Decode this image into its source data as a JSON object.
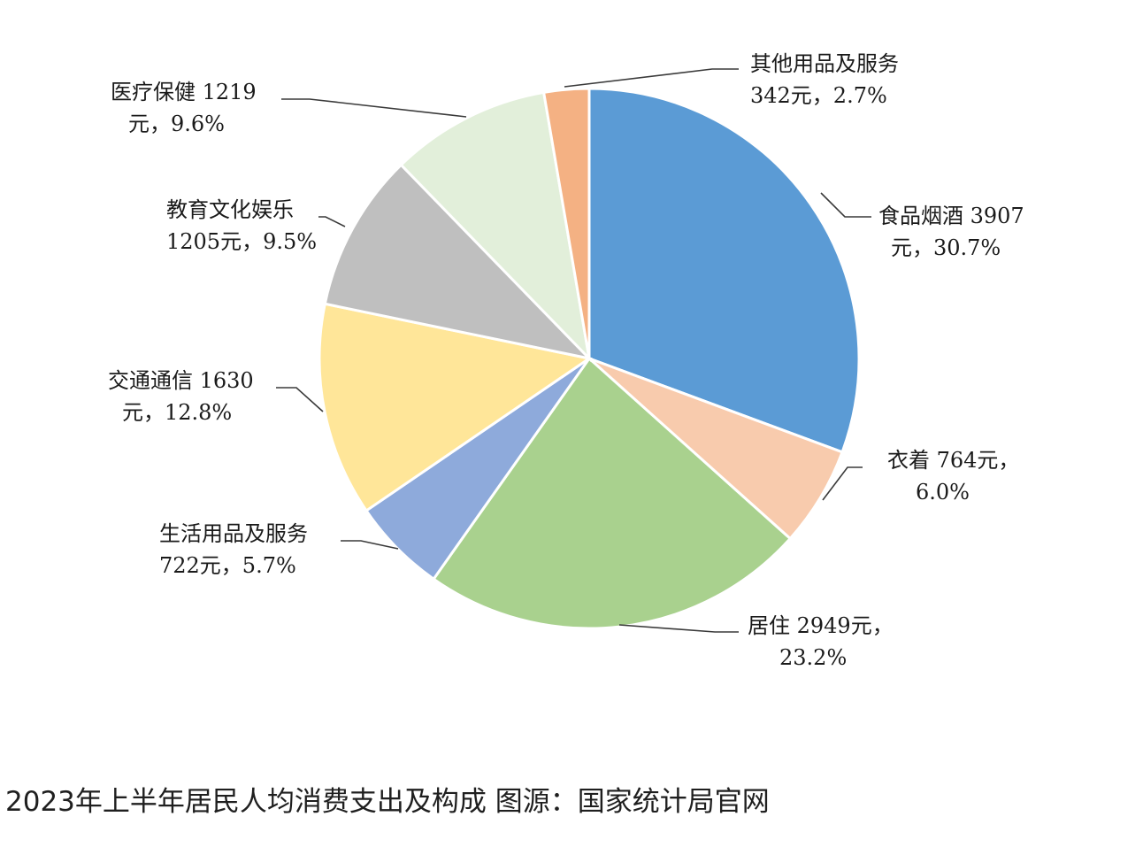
{
  "caption": "2023年上半年居民人均消费支出及构成 图源：国家统计局官网",
  "chart_data": {
    "type": "pie",
    "title": "",
    "start_angle_deg": 0,
    "direction": "clockwise",
    "slices": [
      {
        "name": "食品烟酒",
        "amount": 3907,
        "percent": 30.7,
        "color": "#5b9bd5",
        "label_lines": [
          "食品烟酒 3907",
          "元，30.7%"
        ]
      },
      {
        "name": "衣着",
        "amount": 764,
        "percent": 6.0,
        "color": "#f8cbad",
        "label_lines": [
          "衣着 764元，",
          "6.0%"
        ]
      },
      {
        "name": "居住",
        "amount": 2949,
        "percent": 23.2,
        "color": "#a9d18e",
        "label_lines": [
          "居住 2949元，",
          "23.2%"
        ]
      },
      {
        "name": "生活用品及服务",
        "amount": 722,
        "percent": 5.7,
        "color": "#8eaadb",
        "label_lines": [
          "生活用品及服务",
          "722元，5.7%"
        ]
      },
      {
        "name": "交通通信",
        "amount": 1630,
        "percent": 12.8,
        "color": "#ffe699",
        "label_lines": [
          "交通通信 1630",
          "元，12.8%"
        ]
      },
      {
        "name": "教育文化娱乐",
        "amount": 1205,
        "percent": 9.5,
        "color": "#bfbfbf",
        "label_lines": [
          "教育文化娱乐",
          "1205元，9.5%"
        ]
      },
      {
        "name": "医疗保健",
        "amount": 1219,
        "percent": 9.6,
        "color": "#e2efda",
        "label_lines": [
          "医疗保健 1219",
          "元，9.6%"
        ]
      },
      {
        "name": "其他用品及服务",
        "amount": 342,
        "percent": 2.7,
        "color": "#f4b183",
        "label_lines": [
          "其他用品及服务",
          "342元，2.7%"
        ]
      }
    ]
  }
}
